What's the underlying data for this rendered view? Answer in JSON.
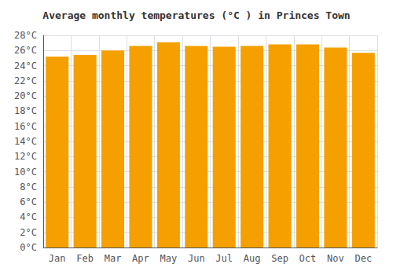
{
  "chart_data": {
    "type": "bar",
    "title": "Average monthly temperatures (°C ) in Princes Town",
    "categories": [
      "Jan",
      "Feb",
      "Mar",
      "Apr",
      "May",
      "Jun",
      "Jul",
      "Aug",
      "Sep",
      "Oct",
      "Nov",
      "Dec"
    ],
    "values": [
      25.2,
      25.4,
      26.0,
      26.6,
      27.1,
      26.6,
      26.5,
      26.6,
      26.8,
      26.8,
      26.4,
      25.7
    ],
    "color": "#F5A000",
    "ylim": [
      0,
      28
    ],
    "yticks": [
      {
        "value": 0,
        "label": "0°C"
      },
      {
        "value": 2,
        "label": "2°C"
      },
      {
        "value": 4,
        "label": "4°C"
      },
      {
        "value": 6,
        "label": "6°C"
      },
      {
        "value": 8,
        "label": "8°C"
      },
      {
        "value": 10,
        "label": "10°C"
      },
      {
        "value": 12,
        "label": "12°C"
      },
      {
        "value": 14,
        "label": "14°C"
      },
      {
        "value": 16,
        "label": "16°C"
      },
      {
        "value": 18,
        "label": "18°C"
      },
      {
        "value": 20,
        "label": "20°C"
      },
      {
        "value": 22,
        "label": "22°C"
      },
      {
        "value": 24,
        "label": "24°C"
      },
      {
        "value": 26,
        "label": "26°C"
      },
      {
        "value": 28,
        "label": "28°C"
      }
    ],
    "grid": true
  }
}
